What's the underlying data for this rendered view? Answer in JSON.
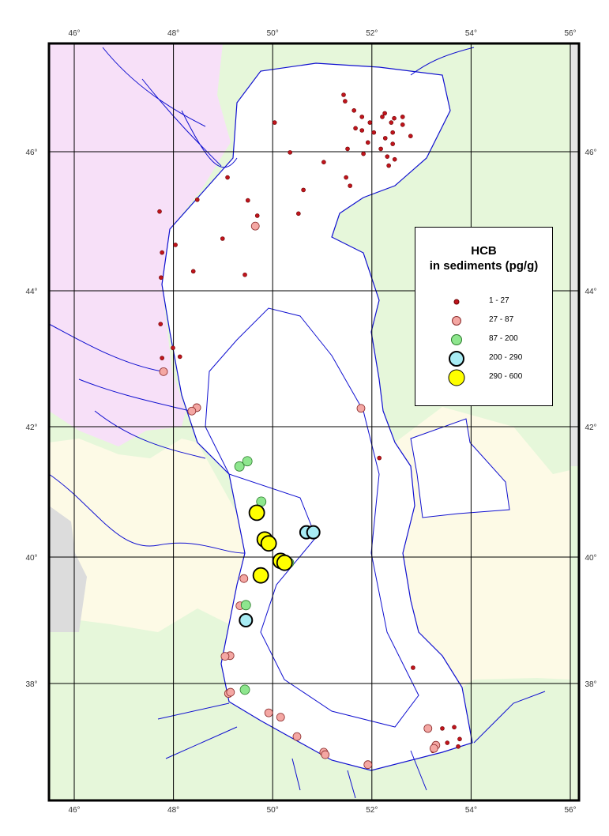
{
  "legend": {
    "title_line1": "HCB",
    "title_line2": "in sediments (pg/g)",
    "classes": [
      {
        "label": "1 - 27",
        "fill": "#c0141c",
        "stroke": "#6a0000",
        "size": "smallest"
      },
      {
        "label": "27 - 87",
        "fill": "#f4a7a3",
        "stroke": "#8a2a2a",
        "size": "small"
      },
      {
        "label": "87 - 200",
        "fill": "#8ee68e",
        "stroke": "#2a7a2a",
        "size": "medium"
      },
      {
        "label": "200 - 290",
        "fill": "#a8ecf4",
        "stroke": "#000000",
        "size": "large"
      },
      {
        "label": "290 - 600",
        "fill": "#ffff00",
        "stroke": "#000000",
        "size": "largest"
      }
    ]
  },
  "axes": {
    "lon_ticks": [
      46,
      48,
      50,
      52,
      54,
      56
    ],
    "lat_ticks": [
      38,
      40,
      42,
      44,
      46
    ],
    "lon_range": [
      45.5,
      56.2
    ],
    "lat_range": [
      36.2,
      47.6
    ],
    "grid": true,
    "degree_symbol": "°"
  },
  "colors": {
    "russia": "#f7e0f8",
    "kazakhstan_iran": "#e6f7da",
    "azerbaijan_turkmenistan": "#fdfae6",
    "other": "#dcdcdc",
    "sea": "#ffffff",
    "water_lines": "#1010d0",
    "frame": "#000000"
  },
  "samples": {
    "class0": [
      [
        51.43,
        46.8
      ],
      [
        51.46,
        46.71
      ],
      [
        51.64,
        46.58
      ],
      [
        52.26,
        46.54
      ],
      [
        52.21,
        46.49
      ],
      [
        51.8,
        46.49
      ],
      [
        51.96,
        46.41
      ],
      [
        52.45,
        46.47
      ],
      [
        52.62,
        46.49
      ],
      [
        52.39,
        46.41
      ],
      [
        52.62,
        46.38
      ],
      [
        51.67,
        46.33
      ],
      [
        51.8,
        46.3
      ],
      [
        52.04,
        46.27
      ],
      [
        51.92,
        46.13
      ],
      [
        52.27,
        46.19
      ],
      [
        52.42,
        46.27
      ],
      [
        52.42,
        46.11
      ],
      [
        51.51,
        46.04
      ],
      [
        51.83,
        45.97
      ],
      [
        52.18,
        46.04
      ],
      [
        52.31,
        45.93
      ],
      [
        52.46,
        45.89
      ],
      [
        52.34,
        45.8
      ],
      [
        52.78,
        46.22
      ],
      [
        51.03,
        45.85
      ],
      [
        51.48,
        45.63
      ],
      [
        51.56,
        45.51
      ],
      [
        50.35,
        45.99
      ],
      [
        50.04,
        46.41
      ],
      [
        50.62,
        45.45
      ],
      [
        49.09,
        45.63
      ],
      [
        49.5,
        45.3
      ],
      [
        48.48,
        45.31
      ],
      [
        49.69,
        45.08
      ],
      [
        47.72,
        45.14
      ],
      [
        50.52,
        45.11
      ],
      [
        48.04,
        44.66
      ],
      [
        47.77,
        44.55
      ],
      [
        48.99,
        44.75
      ],
      [
        48.4,
        44.28
      ],
      [
        47.75,
        44.19
      ],
      [
        49.44,
        44.23
      ],
      [
        47.74,
        43.51
      ],
      [
        47.99,
        43.16
      ],
      [
        48.13,
        43.03
      ],
      [
        47.77,
        43.01
      ],
      [
        52.15,
        41.52
      ],
      [
        52.83,
        38.25
      ],
      [
        53.66,
        37.3
      ],
      [
        53.42,
        37.28
      ],
      [
        53.77,
        37.11
      ],
      [
        53.52,
        37.05
      ],
      [
        53.23,
        36.92
      ],
      [
        53.74,
        36.99
      ]
    ],
    "class1": [
      [
        49.65,
        44.93
      ],
      [
        47.8,
        42.81
      ],
      [
        51.78,
        42.27
      ],
      [
        48.47,
        42.28
      ],
      [
        48.37,
        42.23
      ],
      [
        49.42,
        39.66
      ],
      [
        49.34,
        39.23
      ],
      [
        49.14,
        38.44
      ],
      [
        49.04,
        38.43
      ],
      [
        49.11,
        37.84
      ],
      [
        49.15,
        37.86
      ],
      [
        49.92,
        37.53
      ],
      [
        50.16,
        37.46
      ],
      [
        50.49,
        37.15
      ],
      [
        51.03,
        36.9
      ],
      [
        51.06,
        36.86
      ],
      [
        51.92,
        36.7
      ],
      [
        53.13,
        37.28
      ],
      [
        53.29,
        37.01
      ],
      [
        53.25,
        36.96
      ]
    ],
    "class2": [
      [
        49.49,
        41.47
      ],
      [
        49.33,
        41.39
      ],
      [
        49.77,
        40.85
      ],
      [
        50.33,
        39.91
      ],
      [
        49.46,
        39.24
      ],
      [
        49.44,
        37.9
      ]
    ],
    "class3": [
      [
        50.68,
        40.38
      ],
      [
        50.82,
        40.38
      ],
      [
        49.46,
        39.0
      ]
    ],
    "class4": [
      [
        49.68,
        40.68
      ],
      [
        49.84,
        40.27
      ],
      [
        49.92,
        40.21
      ],
      [
        50.16,
        39.94
      ],
      [
        50.24,
        39.91
      ],
      [
        49.76,
        39.71
      ]
    ]
  }
}
